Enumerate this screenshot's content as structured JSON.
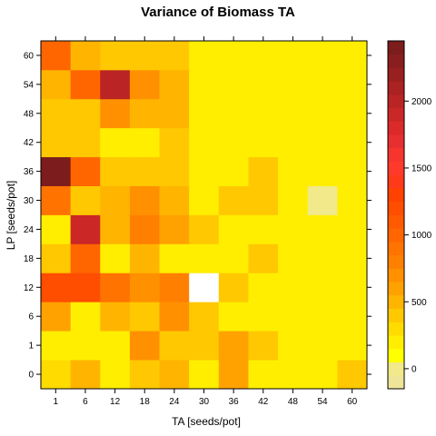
{
  "chart_data": {
    "type": "heatmap",
    "title": "Variance of Biomass TA",
    "xlabel": "TA [seeds/pot]",
    "ylabel": "LP [seeds/pot]",
    "x_categories": [
      "1",
      "6",
      "12",
      "18",
      "24",
      "30",
      "36",
      "42",
      "48",
      "54",
      "60"
    ],
    "y_categories": [
      "0",
      "1",
      "6",
      "12",
      "18",
      "24",
      "30",
      "36",
      "42",
      "48",
      "54",
      "60"
    ],
    "values": [
      [
        250,
        450,
        150,
        350,
        450,
        150,
        550,
        150,
        150,
        150,
        350
      ],
      [
        150,
        150,
        150,
        650,
        350,
        350,
        550,
        350,
        150,
        150,
        150
      ],
      [
        550,
        150,
        450,
        350,
        650,
        350,
        150,
        150,
        150,
        150,
        150
      ],
      [
        1150,
        1150,
        850,
        650,
        750,
        null,
        350,
        150,
        150,
        150,
        150
      ],
      [
        350,
        950,
        150,
        450,
        150,
        150,
        150,
        350,
        150,
        150,
        150
      ],
      [
        150,
        1850,
        450,
        750,
        550,
        350,
        150,
        150,
        150,
        150,
        150
      ],
      [
        850,
        350,
        450,
        650,
        450,
        150,
        350,
        350,
        150,
        -50,
        150
      ],
      [
        2350,
        950,
        350,
        350,
        350,
        150,
        150,
        350,
        150,
        150,
        150
      ],
      [
        350,
        350,
        150,
        150,
        350,
        150,
        150,
        150,
        150,
        150,
        150
      ],
      [
        350,
        350,
        650,
        450,
        450,
        150,
        150,
        150,
        150,
        150,
        150
      ],
      [
        450,
        950,
        1950,
        650,
        450,
        150,
        150,
        150,
        150,
        150,
        150
      ],
      [
        950,
        450,
        350,
        350,
        350,
        150,
        150,
        150,
        150,
        150,
        150
      ]
    ],
    "colorbar": {
      "ticks": [
        0,
        500,
        1000,
        1500,
        2000
      ],
      "range": [
        -150,
        2450
      ],
      "breaks": [
        -150,
        -50,
        50,
        150,
        250,
        350,
        450,
        550,
        650,
        750,
        850,
        950,
        1050,
        1150,
        1250,
        1350,
        1450,
        1550,
        1650,
        1750,
        1850,
        1950,
        2050,
        2150,
        2250,
        2350,
        2450
      ],
      "colors": [
        "#eee59a",
        "#f1e98a",
        "#ffff00",
        "#ffee00",
        "#ffdb00",
        "#ffc800",
        "#ffb500",
        "#ffa200",
        "#ff9100",
        "#ff8000",
        "#ff7300",
        "#ff6600",
        "#ff5a00",
        "#ff4e00",
        "#ff4200",
        "#ff3a1a",
        "#ff3a2a",
        "#f5352e",
        "#e82f2f",
        "#dc2a2a",
        "#cc2727",
        "#bb2424",
        "#aa2222",
        "#992020",
        "#8a1e1e",
        "#7c1c1c"
      ]
    },
    "missing_color": "#ffffff"
  }
}
